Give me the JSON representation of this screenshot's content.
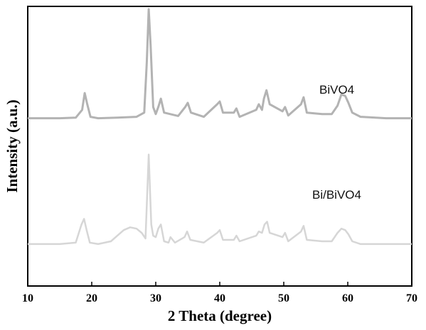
{
  "chart_data": {
    "type": "line",
    "title": "",
    "xlabel": "2 Theta (degree)",
    "ylabel": "Intensity (a.u.)",
    "xlim": [
      10,
      70
    ],
    "ylim": [
      0,
      10
    ],
    "xticks": [
      10,
      20,
      30,
      40,
      50,
      60,
      70
    ],
    "yticks": [],
    "grid": false,
    "legend": "none (series labelled inline)",
    "series": [
      {
        "name": "BiVO4",
        "color": "#b3b3b3",
        "x": [
          10.0,
          15.0,
          17.5,
          18.5,
          18.9,
          19.3,
          19.8,
          21.0,
          24.0,
          27.0,
          28.2,
          28.6,
          28.9,
          29.2,
          29.6,
          30.0,
          30.4,
          30.8,
          31.3,
          33.5,
          34.6,
          35.0,
          35.5,
          37.5,
          39.6,
          40.0,
          40.5,
          42.2,
          42.6,
          43.1,
          45.7,
          46.1,
          46.6,
          46.9,
          47.3,
          47.8,
          49.8,
          50.2,
          50.7,
          52.7,
          53.1,
          53.6,
          56.0,
          57.5,
          58.4,
          59.0,
          59.6,
          60.1,
          60.7,
          62.0,
          66.0,
          70.0
        ],
        "y": [
          6.0,
          6.0,
          6.02,
          6.3,
          6.9,
          6.5,
          6.05,
          6.0,
          6.02,
          6.05,
          6.2,
          8.0,
          9.9,
          8.6,
          6.4,
          6.15,
          6.4,
          6.7,
          6.2,
          6.08,
          6.4,
          6.55,
          6.2,
          6.05,
          6.5,
          6.6,
          6.2,
          6.2,
          6.35,
          6.05,
          6.3,
          6.5,
          6.3,
          6.7,
          7.0,
          6.5,
          6.25,
          6.4,
          6.1,
          6.5,
          6.75,
          6.2,
          6.15,
          6.15,
          6.45,
          6.85,
          6.8,
          6.55,
          6.2,
          6.05,
          6.0,
          6.0
        ]
      },
      {
        "name": "Bi/BiVO4",
        "color": "#d6d6d6",
        "x": [
          10.0,
          15.0,
          17.5,
          18.4,
          18.8,
          19.2,
          19.7,
          21.0,
          23.0,
          24.0,
          25.0,
          26.0,
          27.0,
          27.8,
          28.4,
          28.9,
          29.3,
          29.6,
          30.0,
          30.4,
          30.8,
          31.3,
          32.0,
          32.3,
          33.0,
          34.5,
          34.9,
          35.4,
          37.5,
          39.6,
          40.0,
          40.5,
          42.2,
          42.6,
          43.1,
          45.7,
          46.1,
          46.6,
          47.0,
          47.4,
          47.8,
          49.8,
          50.2,
          50.7,
          52.7,
          53.1,
          53.6,
          56.0,
          57.5,
          58.4,
          59.0,
          59.6,
          60.1,
          60.7,
          62.0,
          66.0,
          70.0
        ],
        "y": [
          1.5,
          1.5,
          1.55,
          2.2,
          2.4,
          2.0,
          1.55,
          1.5,
          1.6,
          1.8,
          2.0,
          2.1,
          2.05,
          1.9,
          1.7,
          4.7,
          2.2,
          1.8,
          1.75,
          2.05,
          2.2,
          1.6,
          1.55,
          1.75,
          1.55,
          1.75,
          1.95,
          1.65,
          1.55,
          1.9,
          2.0,
          1.65,
          1.65,
          1.8,
          1.6,
          1.8,
          1.95,
          1.9,
          2.2,
          2.3,
          1.9,
          1.75,
          1.9,
          1.6,
          1.95,
          2.15,
          1.65,
          1.6,
          1.6,
          1.9,
          2.05,
          2.0,
          1.85,
          1.6,
          1.5,
          1.5,
          1.5
        ]
      }
    ],
    "annotations": [
      "BiVO4",
      "Bi/BiVO4"
    ]
  }
}
